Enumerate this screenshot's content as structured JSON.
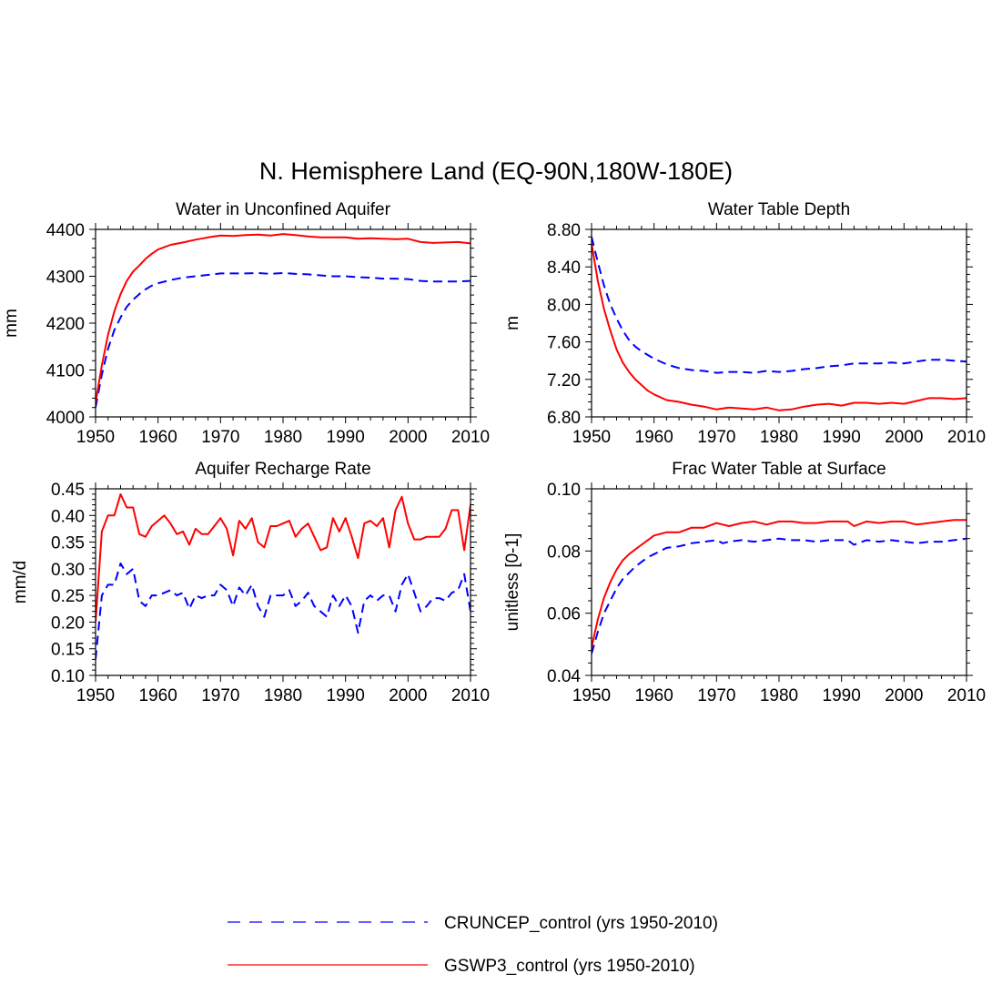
{
  "suptitle": "N. Hemisphere Land (EQ-90N,180W-180E)",
  "colors": {
    "cruncep": "#0000ff",
    "gswp3": "#ff0000"
  },
  "legend": {
    "cruncep": "CRUNCEP_control (yrs 1950-2010)",
    "gswp3": "GSWP3_control (yrs 1950-2010)"
  },
  "chart_data": [
    {
      "type": "line",
      "title": "Water in Unconfined Aquifer",
      "xlabel": "",
      "ylabel": "mm",
      "xlim": [
        1950,
        2010
      ],
      "ylim": [
        4000,
        4400
      ],
      "xticks": [
        1950,
        1960,
        1970,
        1980,
        1990,
        2000,
        2010
      ],
      "yticks": [
        4000,
        4100,
        4200,
        4300,
        4400
      ],
      "ytick_labels": [
        "4000",
        "4100",
        "4200",
        "4300",
        "4400"
      ],
      "series": [
        {
          "name": "CRUNCEP_control",
          "x": [
            1950,
            1951,
            1952,
            1953,
            1954,
            1955,
            1956,
            1957,
            1958,
            1959,
            1960,
            1962,
            1964,
            1966,
            1968,
            1970,
            1972,
            1974,
            1976,
            1978,
            1980,
            1982,
            1984,
            1986,
            1988,
            1990,
            1992,
            1994,
            1996,
            1998,
            2000,
            2002,
            2004,
            2006,
            2008,
            2010
          ],
          "values": [
            4020,
            4090,
            4145,
            4185,
            4212,
            4235,
            4250,
            4262,
            4272,
            4280,
            4285,
            4292,
            4297,
            4300,
            4303,
            4306,
            4306,
            4306,
            4307,
            4305,
            4307,
            4305,
            4304,
            4302,
            4300,
            4300,
            4298,
            4297,
            4295,
            4295,
            4294,
            4290,
            4289,
            4289,
            4289,
            4290
          ]
        },
        {
          "name": "GSWP3_control",
          "x": [
            1950,
            1951,
            1952,
            1953,
            1954,
            1955,
            1956,
            1957,
            1958,
            1959,
            1960,
            1962,
            1964,
            1966,
            1968,
            1970,
            1972,
            1974,
            1976,
            1978,
            1980,
            1982,
            1984,
            1986,
            1988,
            1990,
            1992,
            1994,
            1996,
            1998,
            2000,
            2002,
            2004,
            2006,
            2008,
            2010
          ],
          "values": [
            4030,
            4110,
            4175,
            4225,
            4262,
            4290,
            4310,
            4323,
            4337,
            4348,
            4357,
            4367,
            4372,
            4378,
            4383,
            4387,
            4386,
            4388,
            4389,
            4387,
            4390,
            4388,
            4385,
            4383,
            4383,
            4383,
            4380,
            4381,
            4380,
            4379,
            4380,
            4373,
            4371,
            4372,
            4373,
            4370
          ]
        }
      ]
    },
    {
      "type": "line",
      "title": "Water Table Depth",
      "xlabel": "",
      "ylabel": "m",
      "xlim": [
        1950,
        2010
      ],
      "ylim": [
        6.8,
        8.8
      ],
      "xticks": [
        1950,
        1960,
        1970,
        1980,
        1990,
        2000,
        2010
      ],
      "yticks": [
        6.8,
        7.2,
        7.6,
        8.0,
        8.4,
        8.8
      ],
      "ytick_labels": [
        "6.80",
        "7.20",
        "7.60",
        "8.00",
        "8.40",
        "8.80"
      ],
      "series": [
        {
          "name": "CRUNCEP_control",
          "x": [
            1950,
            1951,
            1952,
            1953,
            1954,
            1955,
            1956,
            1957,
            1958,
            1959,
            1960,
            1962,
            1964,
            1966,
            1968,
            1970,
            1972,
            1974,
            1976,
            1978,
            1980,
            1982,
            1984,
            1986,
            1988,
            1990,
            1992,
            1994,
            1996,
            1998,
            2000,
            2002,
            2004,
            2006,
            2008,
            2010
          ],
          "values": [
            8.72,
            8.45,
            8.2,
            8.0,
            7.85,
            7.72,
            7.62,
            7.55,
            7.5,
            7.46,
            7.42,
            7.36,
            7.32,
            7.3,
            7.29,
            7.27,
            7.28,
            7.28,
            7.27,
            7.29,
            7.28,
            7.29,
            7.31,
            7.32,
            7.34,
            7.35,
            7.37,
            7.37,
            7.37,
            7.38,
            7.37,
            7.39,
            7.41,
            7.41,
            7.4,
            7.39
          ]
        },
        {
          "name": "GSWP3_control",
          "x": [
            1950,
            1951,
            1952,
            1953,
            1954,
            1955,
            1956,
            1957,
            1958,
            1959,
            1960,
            1962,
            1964,
            1966,
            1968,
            1970,
            1972,
            1974,
            1976,
            1978,
            1980,
            1982,
            1984,
            1986,
            1988,
            1990,
            1992,
            1994,
            1996,
            1998,
            2000,
            2002,
            2004,
            2006,
            2008,
            2010
          ],
          "values": [
            8.65,
            8.25,
            7.95,
            7.72,
            7.52,
            7.38,
            7.28,
            7.2,
            7.14,
            7.08,
            7.04,
            6.98,
            6.96,
            6.93,
            6.91,
            6.88,
            6.9,
            6.89,
            6.88,
            6.9,
            6.87,
            6.88,
            6.91,
            6.93,
            6.94,
            6.92,
            6.95,
            6.95,
            6.94,
            6.95,
            6.94,
            6.97,
            7.0,
            7.0,
            6.99,
            7.0
          ]
        }
      ]
    },
    {
      "type": "line",
      "title": "Aquifer Recharge Rate",
      "xlabel": "",
      "ylabel": "mm/d",
      "xlim": [
        1950,
        2010
      ],
      "ylim": [
        0.1,
        0.45
      ],
      "xticks": [
        1950,
        1960,
        1970,
        1980,
        1990,
        2000,
        2010
      ],
      "yticks": [
        0.1,
        0.15,
        0.2,
        0.25,
        0.3,
        0.35,
        0.4,
        0.45
      ],
      "ytick_labels": [
        "0.10",
        "0.15",
        "0.20",
        "0.25",
        "0.30",
        "0.35",
        "0.40",
        "0.45"
      ],
      "series": [
        {
          "name": "CRUNCEP_control",
          "x": [
            1950,
            1951,
            1952,
            1953,
            1954,
            1955,
            1956,
            1957,
            1958,
            1959,
            1960,
            1961,
            1962,
            1963,
            1964,
            1965,
            1966,
            1967,
            1968,
            1969,
            1970,
            1971,
            1972,
            1973,
            1974,
            1975,
            1976,
            1977,
            1978,
            1979,
            1980,
            1981,
            1982,
            1983,
            1984,
            1985,
            1986,
            1987,
            1988,
            1989,
            1990,
            1991,
            1992,
            1993,
            1994,
            1995,
            1996,
            1997,
            1998,
            1999,
            2000,
            2001,
            2002,
            2003,
            2004,
            2005,
            2006,
            2007,
            2008,
            2009,
            2010
          ],
          "values": [
            0.13,
            0.25,
            0.27,
            0.27,
            0.31,
            0.29,
            0.3,
            0.24,
            0.23,
            0.25,
            0.25,
            0.255,
            0.26,
            0.25,
            0.255,
            0.225,
            0.25,
            0.245,
            0.25,
            0.25,
            0.27,
            0.26,
            0.23,
            0.265,
            0.25,
            0.27,
            0.23,
            0.21,
            0.25,
            0.25,
            0.25,
            0.26,
            0.23,
            0.24,
            0.255,
            0.23,
            0.22,
            0.21,
            0.25,
            0.23,
            0.25,
            0.23,
            0.18,
            0.24,
            0.25,
            0.24,
            0.25,
            0.25,
            0.22,
            0.27,
            0.29,
            0.255,
            0.22,
            0.23,
            0.245,
            0.245,
            0.24,
            0.255,
            0.26,
            0.29,
            0.22
          ]
        },
        {
          "name": "GSWP3_control",
          "x": [
            1950,
            1951,
            1952,
            1953,
            1954,
            1955,
            1956,
            1957,
            1958,
            1959,
            1960,
            1961,
            1962,
            1963,
            1964,
            1965,
            1966,
            1967,
            1968,
            1969,
            1970,
            1971,
            1972,
            1973,
            1974,
            1975,
            1976,
            1977,
            1978,
            1979,
            1980,
            1981,
            1982,
            1983,
            1984,
            1985,
            1986,
            1987,
            1988,
            1989,
            1990,
            1991,
            1992,
            1993,
            1994,
            1995,
            1996,
            1997,
            1998,
            1999,
            2000,
            2001,
            2002,
            2003,
            2004,
            2005,
            2006,
            2007,
            2008,
            2009,
            2010
          ],
          "values": [
            0.2,
            0.37,
            0.4,
            0.4,
            0.44,
            0.415,
            0.415,
            0.365,
            0.36,
            0.38,
            0.39,
            0.4,
            0.385,
            0.365,
            0.37,
            0.345,
            0.375,
            0.365,
            0.365,
            0.38,
            0.395,
            0.375,
            0.325,
            0.39,
            0.375,
            0.395,
            0.35,
            0.34,
            0.38,
            0.38,
            0.385,
            0.39,
            0.36,
            0.375,
            0.385,
            0.36,
            0.335,
            0.34,
            0.395,
            0.37,
            0.395,
            0.36,
            0.32,
            0.385,
            0.39,
            0.38,
            0.395,
            0.34,
            0.41,
            0.435,
            0.385,
            0.355,
            0.355,
            0.36,
            0.36,
            0.36,
            0.375,
            0.41,
            0.41,
            0.335,
            0.42
          ]
        }
      ]
    },
    {
      "type": "line",
      "title": "Frac Water Table at Surface",
      "xlabel": "",
      "ylabel": "unitless [0-1]",
      "xlim": [
        1950,
        2010
      ],
      "ylim": [
        0.04,
        0.1
      ],
      "xticks": [
        1950,
        1960,
        1970,
        1980,
        1990,
        2000,
        2010
      ],
      "yticks": [
        0.04,
        0.06,
        0.08,
        0.1
      ],
      "ytick_labels": [
        "0.04",
        "0.06",
        "0.08",
        "0.10"
      ],
      "series": [
        {
          "name": "CRUNCEP_control",
          "x": [
            1950,
            1951,
            1952,
            1953,
            1954,
            1955,
            1956,
            1957,
            1958,
            1959,
            1960,
            1962,
            1964,
            1966,
            1968,
            1970,
            1971,
            1972,
            1974,
            1976,
            1978,
            1980,
            1982,
            1984,
            1986,
            1988,
            1990,
            1991,
            1992,
            1994,
            1996,
            1998,
            2000,
            2002,
            2004,
            2006,
            2008,
            2010
          ],
          "values": [
            0.047,
            0.054,
            0.06,
            0.064,
            0.068,
            0.071,
            0.073,
            0.075,
            0.0765,
            0.078,
            0.079,
            0.081,
            0.0815,
            0.0825,
            0.083,
            0.0835,
            0.0825,
            0.083,
            0.0835,
            0.083,
            0.0835,
            0.084,
            0.0835,
            0.0835,
            0.083,
            0.0835,
            0.0835,
            0.0835,
            0.082,
            0.0835,
            0.083,
            0.0835,
            0.083,
            0.0825,
            0.083,
            0.083,
            0.0835,
            0.084
          ]
        },
        {
          "name": "GSWP3_control",
          "x": [
            1950,
            1951,
            1952,
            1953,
            1954,
            1955,
            1956,
            1957,
            1958,
            1959,
            1960,
            1962,
            1964,
            1966,
            1968,
            1970,
            1971,
            1972,
            1974,
            1976,
            1978,
            1980,
            1982,
            1984,
            1986,
            1988,
            1990,
            1991,
            1992,
            1994,
            1996,
            1998,
            2000,
            2002,
            2004,
            2006,
            2008,
            2010
          ],
          "values": [
            0.049,
            0.058,
            0.065,
            0.07,
            0.074,
            0.077,
            0.079,
            0.0805,
            0.082,
            0.0835,
            0.085,
            0.086,
            0.086,
            0.0875,
            0.0875,
            0.089,
            0.0885,
            0.088,
            0.089,
            0.0895,
            0.0885,
            0.0895,
            0.0895,
            0.089,
            0.089,
            0.0895,
            0.0895,
            0.0895,
            0.088,
            0.0895,
            0.089,
            0.0895,
            0.0895,
            0.0885,
            0.089,
            0.0895,
            0.09,
            0.09
          ]
        }
      ]
    }
  ]
}
